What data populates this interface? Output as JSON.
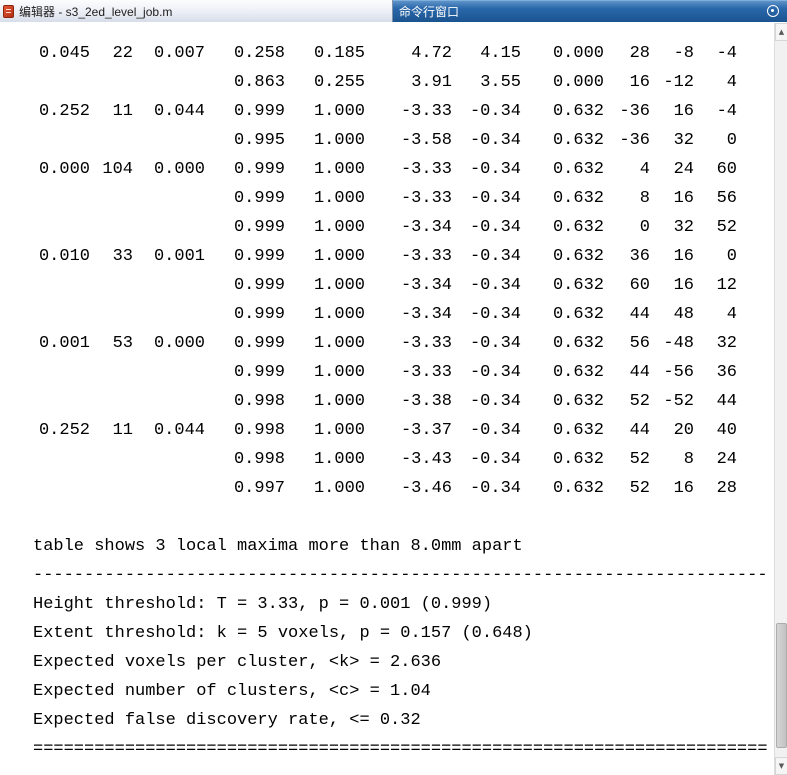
{
  "colors": {
    "panel_titlebar_blue": "#1a538f",
    "tab_background": "#e9edf4",
    "console_text": "#000000"
  },
  "titlebar": {
    "editor_tab": "编辑器 - s3_2ed_level_job.m",
    "command_window_title": "命令行窗口"
  },
  "table": {
    "rows": [
      {
        "cells": [
          "0.045",
          "22",
          "0.007",
          "0.258",
          "0.185",
          "4.72",
          "4.15",
          "0.000",
          "28",
          "-8",
          "-4"
        ]
      },
      {
        "cells": [
          "",
          "",
          "",
          "0.863",
          "0.255",
          "3.91",
          "3.55",
          "0.000",
          "16",
          "-12",
          "4"
        ]
      },
      {
        "cells": [
          "0.252",
          "11",
          "0.044",
          "0.999",
          "1.000",
          "-3.33",
          "-0.34",
          "0.632",
          "-36",
          "16",
          "-4"
        ]
      },
      {
        "cells": [
          "",
          "",
          "",
          "0.995",
          "1.000",
          "-3.58",
          "-0.34",
          "0.632",
          "-36",
          "32",
          "0"
        ]
      },
      {
        "cells": [
          "0.000",
          "104",
          "0.000",
          "0.999",
          "1.000",
          "-3.33",
          "-0.34",
          "0.632",
          "4",
          "24",
          "60"
        ]
      },
      {
        "cells": [
          "",
          "",
          "",
          "0.999",
          "1.000",
          "-3.33",
          "-0.34",
          "0.632",
          "8",
          "16",
          "56"
        ]
      },
      {
        "cells": [
          "",
          "",
          "",
          "0.999",
          "1.000",
          "-3.34",
          "-0.34",
          "0.632",
          "0",
          "32",
          "52"
        ]
      },
      {
        "cells": [
          "0.010",
          "33",
          "0.001",
          "0.999",
          "1.000",
          "-3.33",
          "-0.34",
          "0.632",
          "36",
          "16",
          "0"
        ]
      },
      {
        "cells": [
          "",
          "",
          "",
          "0.999",
          "1.000",
          "-3.34",
          "-0.34",
          "0.632",
          "60",
          "16",
          "12"
        ]
      },
      {
        "cells": [
          "",
          "",
          "",
          "0.999",
          "1.000",
          "-3.34",
          "-0.34",
          "0.632",
          "44",
          "48",
          "4"
        ]
      },
      {
        "cells": [
          "0.001",
          "53",
          "0.000",
          "0.999",
          "1.000",
          "-3.33",
          "-0.34",
          "0.632",
          "56",
          "-48",
          "32"
        ]
      },
      {
        "cells": [
          "",
          "",
          "",
          "0.999",
          "1.000",
          "-3.33",
          "-0.34",
          "0.632",
          "44",
          "-56",
          "36"
        ]
      },
      {
        "cells": [
          "",
          "",
          "",
          "0.998",
          "1.000",
          "-3.38",
          "-0.34",
          "0.632",
          "52",
          "-52",
          "44"
        ]
      },
      {
        "cells": [
          "0.252",
          "11",
          "0.044",
          "0.998",
          "1.000",
          "-3.37",
          "-0.34",
          "0.632",
          "44",
          "20",
          "40"
        ]
      },
      {
        "cells": [
          "",
          "",
          "",
          "0.998",
          "1.000",
          "-3.43",
          "-0.34",
          "0.632",
          "52",
          "8",
          "24"
        ]
      },
      {
        "cells": [
          "",
          "",
          "",
          "0.997",
          "1.000",
          "-3.46",
          "-0.34",
          "0.632",
          "52",
          "16",
          "28"
        ]
      }
    ]
  },
  "footer": {
    "lines": [
      {
        "name": "maxima-summary",
        "text": "table shows 3 local maxima more than 8.0mm apart"
      },
      {
        "name": "dash-separator",
        "text": "------------------------------------------------------------------------"
      },
      {
        "name": "height-threshold",
        "text": "Height threshold: T = 3.33, p = 0.001 (0.999)"
      },
      {
        "name": "extent-threshold",
        "text": "Extent threshold: k = 5 voxels, p = 0.157 (0.648)"
      },
      {
        "name": "expected-voxels",
        "text": "Expected voxels per cluster, <k> = 2.636"
      },
      {
        "name": "expected-clusters",
        "text": "Expected number of clusters, <c> = 1.04"
      },
      {
        "name": "expected-fdr",
        "text": "Expected false discovery rate, <= 0.32"
      },
      {
        "name": "equals-separator",
        "text": "========================================================================"
      }
    ]
  }
}
